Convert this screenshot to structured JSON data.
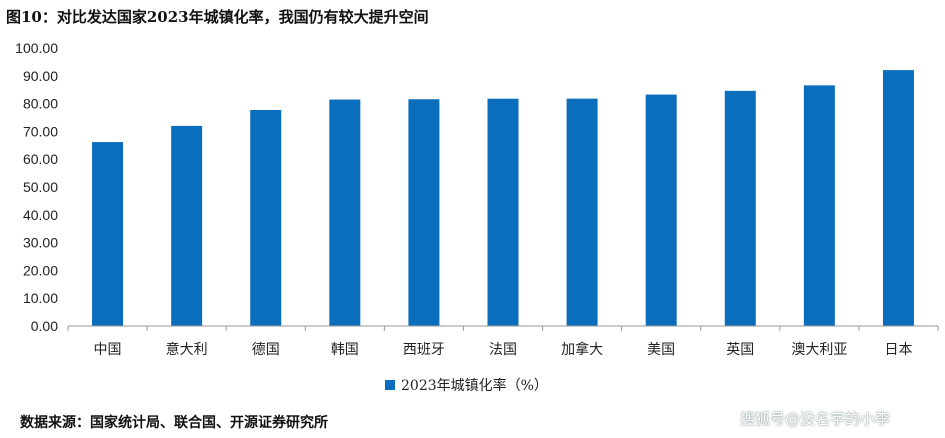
{
  "figure": {
    "title": "图10：对比发达国家2023年城镇化率，我国仍有较大提升空间",
    "source": "数据来源：国家统计局、联合国、开源证券研究所",
    "watermark": "搜狐号@没名字的小李"
  },
  "chart_data": {
    "type": "bar",
    "categories": [
      "中国",
      "意大利",
      "德国",
      "韩国",
      "西班牙",
      "法国",
      "加拿大",
      "美国",
      "英国",
      "澳大利亚",
      "日本"
    ],
    "series": [
      {
        "name": "2023年城镇化率（%）",
        "values": [
          66.16,
          71.98,
          77.7,
          81.46,
          81.57,
          81.76,
          81.79,
          83.25,
          84.59,
          86.56,
          92.04
        ],
        "color": "#0a6ebd"
      }
    ],
    "yticks": [
      "0.00",
      "10.00",
      "20.00",
      "30.00",
      "40.00",
      "50.00",
      "60.00",
      "70.00",
      "80.00",
      "90.00",
      "100.00"
    ],
    "ylim": [
      0,
      100
    ],
    "grid": false,
    "legend_position": "bottom"
  }
}
